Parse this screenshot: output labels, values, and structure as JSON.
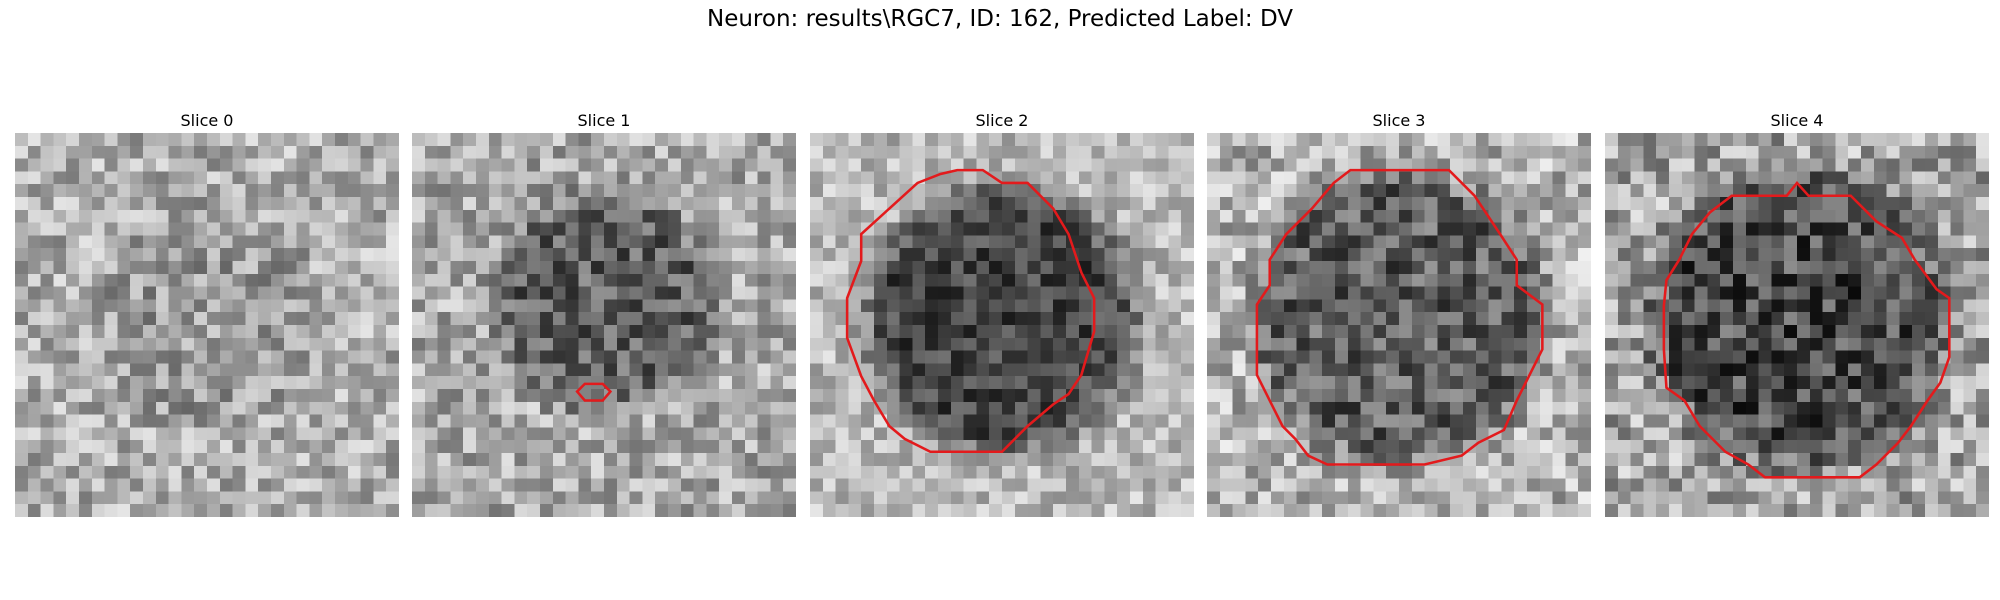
{
  "figure": {
    "title": "Neuron: results\\RGC7, ID: 162, Predicted Label: DV"
  },
  "colors": {
    "contour": "#e31a1c",
    "colormap": "gray"
  },
  "panels": [
    {
      "title": "Slice 0",
      "contour": "none",
      "intensity_profile": "bright-noise"
    },
    {
      "title": "Slice 1",
      "contour": "small",
      "intensity_profile": "dark-blob"
    },
    {
      "title": "Slice 2",
      "contour": "large",
      "intensity_profile": "dark-disc"
    },
    {
      "title": "Slice 3",
      "contour": "large",
      "intensity_profile": "dark-disc-textured"
    },
    {
      "title": "Slice 4",
      "contour": "large",
      "intensity_profile": "dark-disc-noisy"
    }
  ]
}
